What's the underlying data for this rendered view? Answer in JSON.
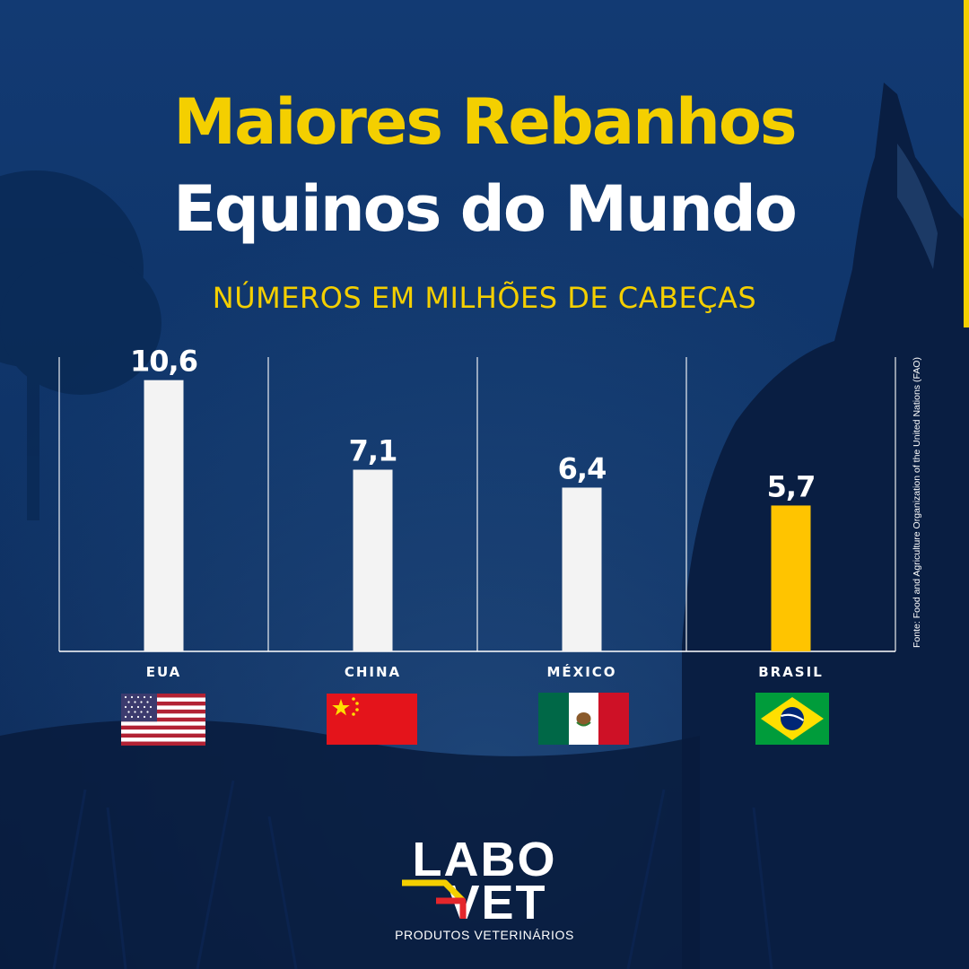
{
  "title": {
    "line1": "Maiores Rebanhos",
    "line2": "Equinos do Mundo"
  },
  "subtitle": "NÚMEROS EM MILHÕES DE CABEÇAS",
  "source": "Fonte: Food and Agriculture Organization of the United Nations (FAO)",
  "colors": {
    "background": "#0f3265",
    "title_yellow": "#f4cf00",
    "bar_default": "#f3f3f3",
    "bar_highlight": "#ffc400",
    "logo_red": "#e4262b"
  },
  "chart_data": {
    "type": "bar",
    "categories": [
      "EUA",
      "CHINA",
      "MÉXICO",
      "BRASIL"
    ],
    "values": [
      10.6,
      7.1,
      6.4,
      5.7
    ],
    "value_labels": [
      "10,6",
      "7,1",
      "6,4",
      "5,7"
    ],
    "highlight": "BRASIL",
    "title": "Maiores Rebanhos Equinos do Mundo",
    "subtitle": "NÚMEROS EM MILHÕES DE CABEÇAS",
    "ylim": [
      0,
      11.5
    ],
    "grid": "vertical separators between categories",
    "legend": "none"
  },
  "flags": [
    "usa-flag-icon",
    "china-flag-icon",
    "mexico-flag-icon",
    "brazil-flag-icon"
  ],
  "logo": {
    "wordmark_top": "LABO",
    "wordmark_bottom": "VET",
    "tagline": "PRODUTOS VETERINÁRIOS"
  }
}
